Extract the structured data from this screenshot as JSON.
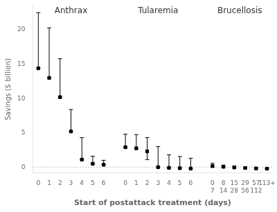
{
  "chart_data": {
    "type": "scatter",
    "xlabel": "Start of postattack treatment (days)",
    "ylabel": "Savings ($ billion)",
    "marker": "square",
    "color": "#000000",
    "grid": false,
    "ylim": [
      -0.8,
      23.5
    ],
    "yticks": [
      0,
      5,
      10,
      15,
      20
    ],
    "reference_line": {
      "value": 0,
      "color": "#888888",
      "line_style": "dotted"
    },
    "groups": [
      {
        "title": "Anthrax",
        "categories": [
          "0",
          "1",
          "2",
          "3",
          "4",
          "5",
          "6"
        ],
        "values": [
          14.4,
          13.0,
          10.2,
          5.2,
          1.1,
          0.5,
          0.35
        ],
        "upper": [
          22.5,
          20.3,
          15.8,
          8.4,
          4.3,
          1.6,
          1.0
        ],
        "lower": [
          14.4,
          13.0,
          10.2,
          5.2,
          1.1,
          0.5,
          0.35
        ]
      },
      {
        "title": "Tularemia",
        "categories": [
          "0",
          "1",
          "2",
          "3",
          "4",
          "5",
          "6"
        ],
        "values": [
          2.9,
          2.75,
          2.3,
          0.0,
          -0.1,
          -0.15,
          -0.2
        ],
        "upper": [
          4.8,
          4.75,
          4.3,
          3.0,
          1.8,
          1.55,
          1.3
        ],
        "lower": [
          2.9,
          2.75,
          1.1,
          0.0,
          -0.1,
          -0.15,
          -0.2
        ]
      },
      {
        "title": "Brucellosis",
        "categories": [
          "0\n7",
          "8\n14",
          "15\n28",
          "29\n56",
          "57\n112",
          "113+"
        ],
        "values": [
          0.15,
          0.05,
          -0.05,
          -0.12,
          -0.18,
          -0.22
        ],
        "upper": [
          0.55,
          0.3,
          0.18,
          0.03,
          -0.05,
          -0.12
        ],
        "lower": [
          0.0,
          -0.05,
          -0.1,
          -0.18,
          -0.22,
          -0.27
        ]
      }
    ]
  }
}
